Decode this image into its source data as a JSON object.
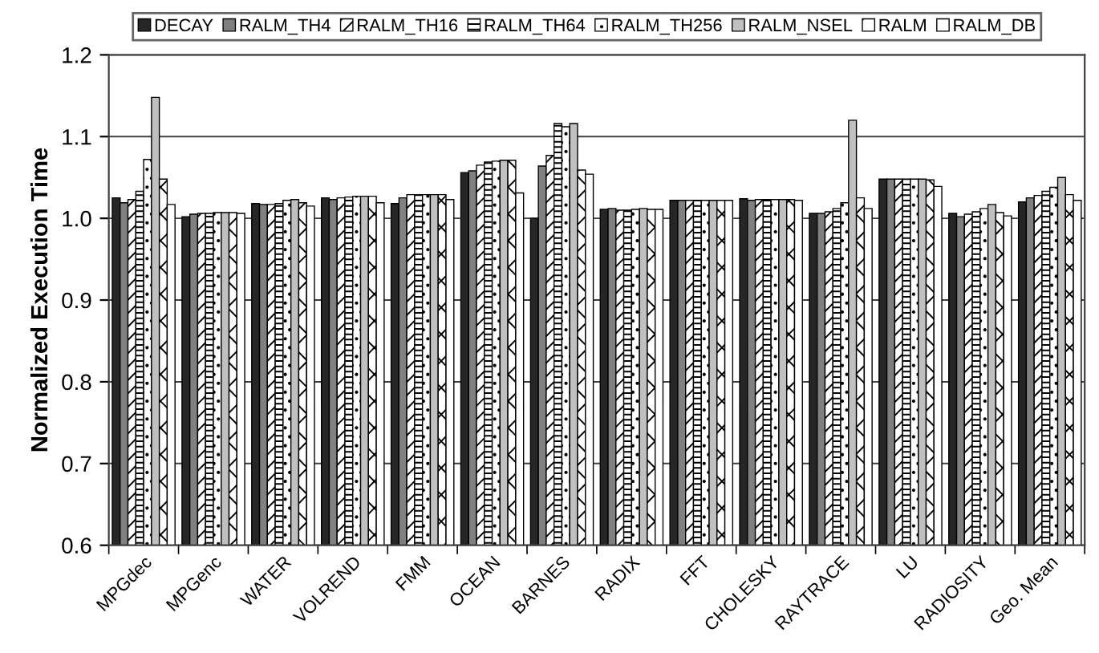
{
  "chart_data": {
    "type": "bar",
    "ylabel": "Normalized Execution Time",
    "categories": [
      "MPGdec",
      "MPGenc",
      "WATER",
      "VOLREND",
      "FMM",
      "OCEAN",
      "BARNES",
      "RADIX",
      "FFT",
      "CHOLESKY",
      "RAYTRACE",
      "LU",
      "RADIOSITY",
      "Geo. Mean"
    ],
    "series": [
      {
        "name": "DECAY",
        "color": "#262626",
        "values": [
          1.025,
          1.002,
          1.018,
          1.025,
          1.018,
          1.056,
          1.0,
          1.011,
          1.022,
          1.024,
          1.006,
          1.048,
          1.006,
          1.02
        ]
      },
      {
        "name": "RALM_TH4",
        "color": "#808080",
        "values": [
          1.019,
          1.005,
          1.017,
          1.023,
          1.025,
          1.058,
          1.064,
          1.012,
          1.022,
          1.022,
          1.006,
          1.048,
          1.002,
          1.025
        ]
      },
      {
        "name": "RALM_TH16",
        "color": "#000000",
        "values": [
          1.023,
          1.006,
          1.017,
          1.025,
          1.029,
          1.065,
          1.077,
          1.01,
          1.022,
          1.023,
          1.008,
          1.048,
          1.005,
          1.028
        ]
      },
      {
        "name": "RALM_TH64",
        "color": "#000000",
        "values": [
          1.033,
          1.006,
          1.018,
          1.026,
          1.029,
          1.069,
          1.116,
          1.01,
          1.022,
          1.023,
          1.012,
          1.048,
          1.008,
          1.033
        ]
      },
      {
        "name": "RALM_TH256",
        "color": "#000000",
        "values": [
          1.072,
          1.007,
          1.022,
          1.027,
          1.029,
          1.07,
          1.112,
          1.011,
          1.022,
          1.023,
          1.019,
          1.048,
          1.012,
          1.038
        ]
      },
      {
        "name": "RALM_NSEL",
        "color": "#c0c0c0",
        "values": [
          1.148,
          1.007,
          1.023,
          1.027,
          1.029,
          1.071,
          1.116,
          1.012,
          1.022,
          1.023,
          1.12,
          1.048,
          1.017,
          1.05
        ]
      },
      {
        "name": "RALM",
        "color": "#000000",
        "values": [
          1.048,
          1.007,
          1.019,
          1.027,
          1.029,
          1.071,
          1.059,
          1.011,
          1.022,
          1.023,
          1.025,
          1.047,
          1.007,
          1.029
        ]
      },
      {
        "name": "RALM_DB",
        "color": "#ffffff",
        "values": [
          1.017,
          1.006,
          1.015,
          1.019,
          1.023,
          1.031,
          1.054,
          1.011,
          1.022,
          1.022,
          1.012,
          1.039,
          1.003,
          1.022
        ]
      }
    ],
    "ylim": [
      0.6,
      1.2
    ],
    "yticks": [
      0.6,
      0.7,
      0.8,
      0.9,
      {
        "value": 1,
        "label": "1.0"
      },
      1.1,
      1.2
    ],
    "grid": "y",
    "legend": "top"
  }
}
